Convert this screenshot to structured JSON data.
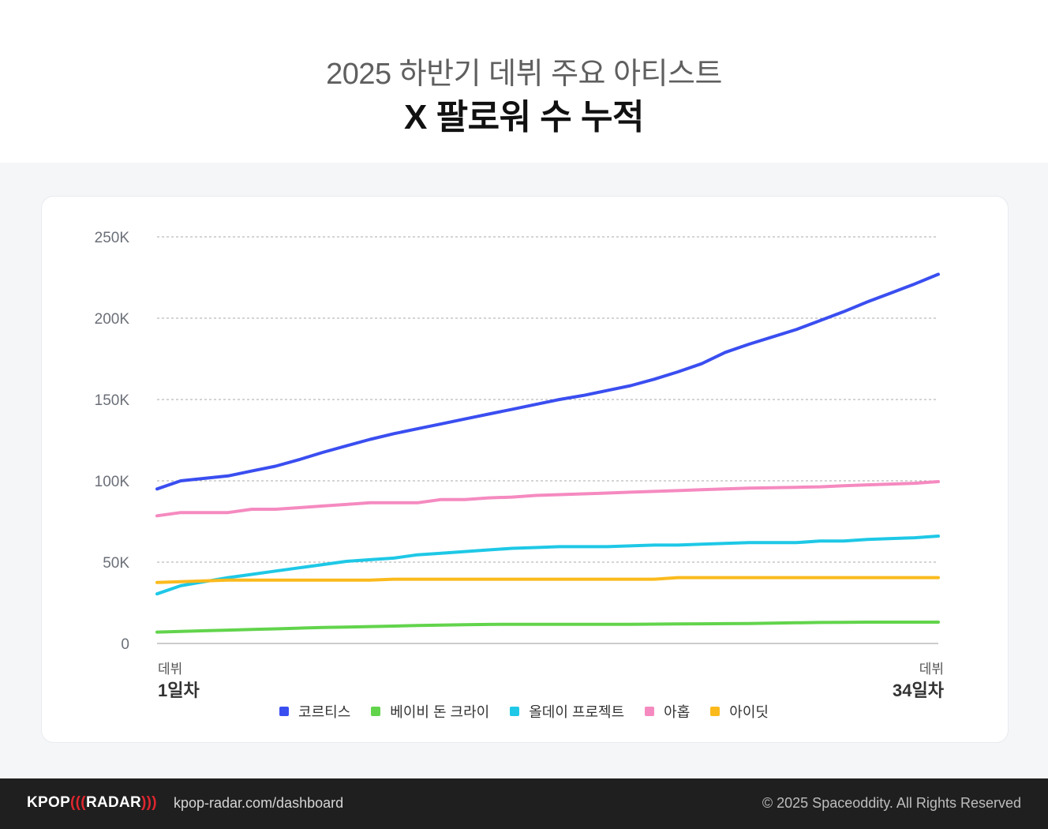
{
  "header": {
    "subtitle": "2025 하반기 데뷔 주요 아티스트",
    "title": "X 팔로워 수 누적"
  },
  "chart_data": {
    "type": "line",
    "title": "X 팔로워 수 누적",
    "subtitle": "2025 하반기 데뷔 주요 아티스트",
    "ylim": [
      0,
      250000
    ],
    "yticks": [
      0,
      50000,
      100000,
      150000,
      200000,
      250000
    ],
    "ytick_labels": [
      "0",
      "50K",
      "100K",
      "150K",
      "200K",
      "250K"
    ],
    "grid": true,
    "x": [
      1,
      2,
      3,
      4,
      5,
      6,
      7,
      8,
      9,
      10,
      11,
      12,
      13,
      14,
      15,
      16,
      17,
      18,
      19,
      20,
      21,
      22,
      23,
      24,
      25,
      26,
      27,
      28,
      29,
      30,
      31,
      32,
      33,
      34
    ],
    "x_start_label_top": "데뷔",
    "x_start_label": "1일차",
    "x_end_label_top": "데뷔",
    "x_end_label": "34일차",
    "legend_position": "bottom",
    "series": [
      {
        "name": "코르티스",
        "color": "#3a4ef0",
        "values": [
          95000,
          100000,
          101500,
          103000,
          106000,
          109000,
          113000,
          117500,
          121500,
          125500,
          129000,
          132000,
          135000,
          138000,
          141000,
          144000,
          147000,
          150000,
          152500,
          155500,
          158500,
          162500,
          167000,
          172000,
          179000,
          184000,
          188500,
          193000,
          198500,
          204000,
          210000,
          215500,
          221000,
          227000
        ]
      },
      {
        "name": "베이비 돈 크라이",
        "color": "#62d44c",
        "values": [
          7000,
          7400,
          7800,
          8200,
          8600,
          9000,
          9400,
          9800,
          10100,
          10400,
          10700,
          11000,
          11300,
          11500,
          11700,
          11800,
          11800,
          11800,
          11800,
          11800,
          11800,
          11900,
          12000,
          12100,
          12200,
          12300,
          12500,
          12700,
          12900,
          13000,
          13100,
          13100,
          13100,
          13100
        ]
      },
      {
        "name": "올데이 프로젝트",
        "color": "#1ec8e6",
        "values": [
          30500,
          35500,
          38000,
          40500,
          42500,
          44500,
          46500,
          48500,
          50500,
          51500,
          52500,
          54500,
          55500,
          56500,
          57500,
          58500,
          59000,
          59500,
          59500,
          59500,
          60000,
          60500,
          60500,
          61000,
          61500,
          62000,
          62000,
          62000,
          63000,
          63000,
          64000,
          64500,
          65000,
          66000
        ]
      },
      {
        "name": "아홉",
        "color": "#f58ac0",
        "values": [
          78500,
          80500,
          80500,
          80500,
          82500,
          82500,
          83500,
          84500,
          85500,
          86500,
          86500,
          86500,
          88500,
          88500,
          89500,
          90000,
          91000,
          91500,
          92000,
          92500,
          93000,
          93500,
          94000,
          94500,
          95000,
          95500,
          95800,
          96000,
          96300,
          97000,
          97500,
          98000,
          98500,
          99500
        ]
      },
      {
        "name": "아이딧",
        "color": "#fbba1c",
        "values": [
          37500,
          38000,
          38500,
          39000,
          39000,
          39000,
          39000,
          39000,
          39000,
          39000,
          39500,
          39500,
          39500,
          39500,
          39500,
          39500,
          39500,
          39500,
          39500,
          39500,
          39500,
          39500,
          40500,
          40500,
          40500,
          40500,
          40500,
          40500,
          40500,
          40500,
          40500,
          40500,
          40500,
          40500
        ]
      }
    ]
  },
  "footer": {
    "logo_left": "KPOP",
    "logo_waves_left": "(((",
    "logo_right": "RADAR",
    "logo_waves_right": ")))",
    "url": "kpop-radar.com/dashboard",
    "copyright": "© 2025 Spaceoddity. All Rights Reserved"
  }
}
